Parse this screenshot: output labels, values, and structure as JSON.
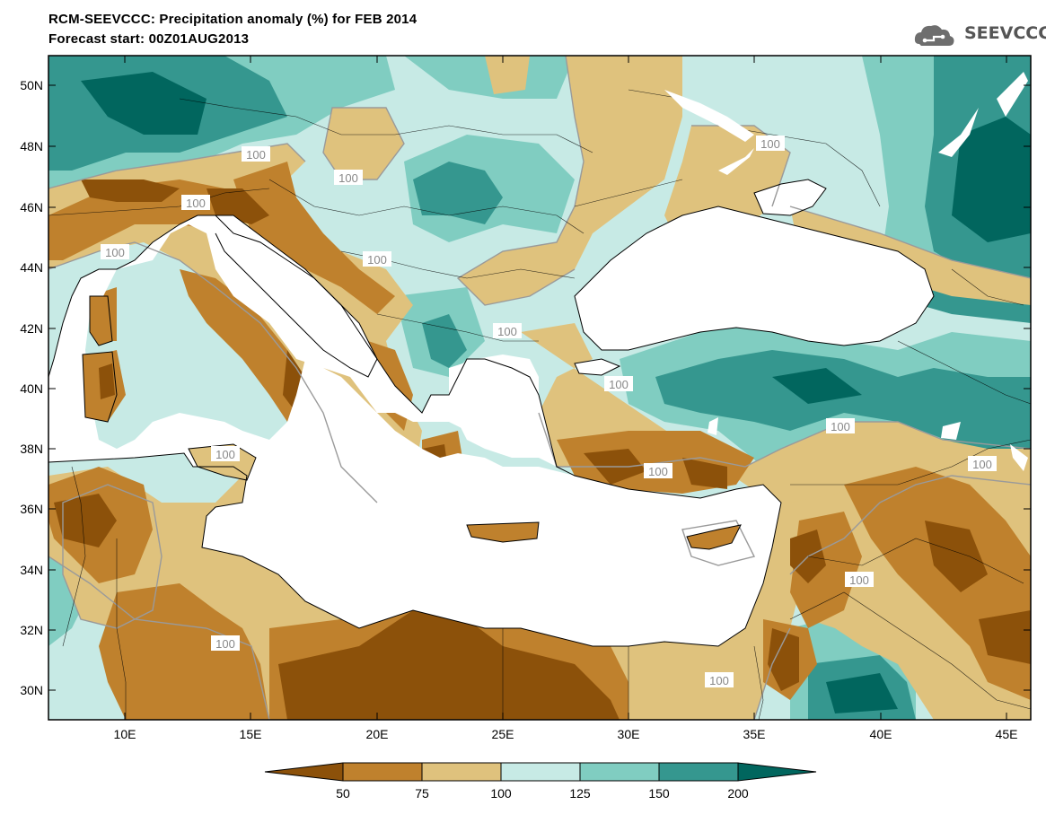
{
  "title_line1": "RCM-SEEVCCC: Precipitation anomaly (%) for FEB 2014",
  "title_line2": "Forecast start: 00Z01AUG2013",
  "logo_text": "SEEVCCC",
  "logo_icon": "cloud-icon",
  "map": {
    "lat_labels": [
      "50N",
      "48N",
      "46N",
      "44N",
      "42N",
      "40N",
      "38N",
      "36N",
      "34N",
      "32N",
      "30N"
    ],
    "lon_labels": [
      "10E",
      "15E",
      "20E",
      "25E",
      "30E",
      "35E",
      "40E",
      "45E"
    ],
    "contour_label": "100"
  },
  "legend": {
    "bins": [
      {
        "range": "< 50",
        "color": "#8c510a"
      },
      {
        "range": "50-75",
        "color": "#bf812d"
      },
      {
        "range": "75-100",
        "color": "#dfc27d"
      },
      {
        "range": "100-125",
        "color": "#c7eae5"
      },
      {
        "range": "125-150",
        "color": "#80cdc1"
      },
      {
        "range": "150-200",
        "color": "#35978f"
      },
      {
        "range": "> 200",
        "color": "#01665e"
      }
    ],
    "ticks": [
      "50",
      "75",
      "100",
      "125",
      "150",
      "200"
    ]
  },
  "colors": {
    "below_50": "#8c510a",
    "r50_75": "#bf812d",
    "r75_100": "#dfc27d",
    "r100_125": "#c7eae5",
    "r125_150": "#80cdc1",
    "r150_200": "#35978f",
    "above_200": "#01665e",
    "sea": "#ffffff"
  }
}
